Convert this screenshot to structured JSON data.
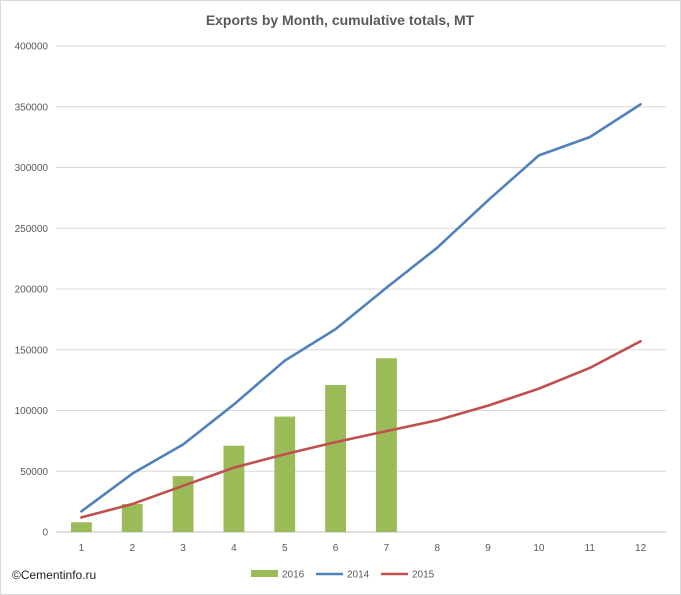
{
  "chart_data": {
    "type": "bar",
    "title": "Exports by Month, cumulative totals, MT",
    "xlabel": "",
    "ylabel": "",
    "categories": [
      "1",
      "2",
      "3",
      "4",
      "5",
      "6",
      "7",
      "8",
      "9",
      "10",
      "11",
      "12"
    ],
    "ylim": [
      0,
      400000
    ],
    "yticks": [
      0,
      50000,
      100000,
      150000,
      200000,
      250000,
      300000,
      350000,
      400000
    ],
    "ytick_labels": [
      "0",
      "50000",
      "100000",
      "150000",
      "200000",
      "250000",
      "300000",
      "350000",
      "400000"
    ],
    "grid": true,
    "legend_position": "bottom",
    "series": [
      {
        "name": "2016",
        "kind": "bar",
        "color": "#9bbb59",
        "values": [
          8000,
          23000,
          46000,
          71000,
          95000,
          121000,
          143000,
          null,
          null,
          null,
          null,
          null
        ]
      },
      {
        "name": "2014",
        "kind": "line",
        "color": "#4f81bd",
        "values": [
          17000,
          48000,
          72000,
          105000,
          141000,
          167000,
          201000,
          234000,
          273000,
          310000,
          325000,
          352000
        ]
      },
      {
        "name": "2015",
        "kind": "line",
        "color": "#c0504d",
        "values": [
          12000,
          23000,
          38000,
          53000,
          64000,
          74000,
          83000,
          92000,
          104000,
          118000,
          135000,
          157000
        ]
      }
    ]
  },
  "credit": "©Cementinfo.ru"
}
